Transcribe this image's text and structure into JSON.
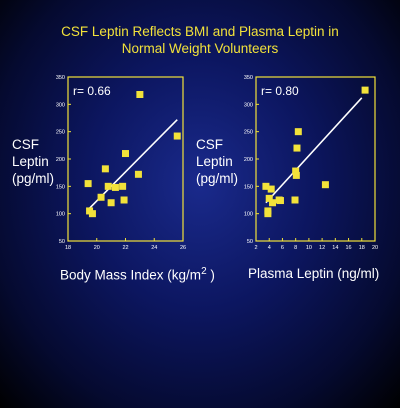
{
  "title_line1": "CSF Leptin Reflects BMI and Plasma Leptin in",
  "title_line2": "Normal Weight Volunteers",
  "colors": {
    "title": "#f2e23a",
    "frame": "#f2e23a",
    "marker": "#f2e23a",
    "fit": "#ffffff"
  },
  "chart_data": [
    {
      "type": "scatter",
      "ylabel_lines": [
        "CSF",
        "Leptin",
        "(pg/ml)"
      ],
      "xlabel": "Body Mass Index (kg/m",
      "xlabel_sup": "2",
      "xlabel_close": " )",
      "annotation": "r= 0.66",
      "xlim": [
        18,
        26
      ],
      "ylim": [
        50,
        350
      ],
      "xticks": [
        "18",
        "20",
        "22",
        "24",
        "26"
      ],
      "yticks": [
        "50",
        "100",
        "150",
        "200",
        "250",
        "300",
        "350"
      ],
      "points": [
        {
          "x": 19.4,
          "y": 155
        },
        {
          "x": 19.5,
          "y": 105
        },
        {
          "x": 19.7,
          "y": 100
        },
        {
          "x": 20.3,
          "y": 130
        },
        {
          "x": 20.6,
          "y": 182
        },
        {
          "x": 20.8,
          "y": 150
        },
        {
          "x": 21.0,
          "y": 120
        },
        {
          "x": 21.3,
          "y": 148
        },
        {
          "x": 21.8,
          "y": 150
        },
        {
          "x": 21.9,
          "y": 125
        },
        {
          "x": 22.0,
          "y": 210
        },
        {
          "x": 22.9,
          "y": 172
        },
        {
          "x": 23.0,
          "y": 318
        },
        {
          "x": 25.6,
          "y": 242
        }
      ],
      "fit_line": {
        "x": [
          19.5,
          25.6
        ],
        "y": [
          110,
          272
        ]
      }
    },
    {
      "type": "scatter",
      "ylabel_lines": [
        "CSF",
        "Leptin",
        "(pg/ml)"
      ],
      "xlabel": "Plasma Leptin (ng/ml)",
      "annotation": "r= 0.80",
      "xlim": [
        2,
        20
      ],
      "ylim": [
        50,
        350
      ],
      "xticks": [
        "2",
        "4",
        "6",
        "8",
        "10",
        "12",
        "14",
        "16",
        "18",
        "20"
      ],
      "yticks": [
        "50",
        "100",
        "150",
        "200",
        "250",
        "300",
        "350"
      ],
      "points": [
        {
          "x": 3.5,
          "y": 150
        },
        {
          "x": 3.8,
          "y": 105
        },
        {
          "x": 3.8,
          "y": 100
        },
        {
          "x": 4.0,
          "y": 128
        },
        {
          "x": 4.3,
          "y": 145
        },
        {
          "x": 4.5,
          "y": 120
        },
        {
          "x": 5.5,
          "y": 125
        },
        {
          "x": 5.7,
          "y": 124
        },
        {
          "x": 7.9,
          "y": 125
        },
        {
          "x": 8.0,
          "y": 178
        },
        {
          "x": 8.1,
          "y": 170
        },
        {
          "x": 8.2,
          "y": 220
        },
        {
          "x": 8.4,
          "y": 250
        },
        {
          "x": 12.5,
          "y": 153
        },
        {
          "x": 18.5,
          "y": 326
        }
      ],
      "fit_line": {
        "x": [
          3.5,
          18.0
        ],
        "y": [
          120,
          312
        ]
      }
    }
  ]
}
